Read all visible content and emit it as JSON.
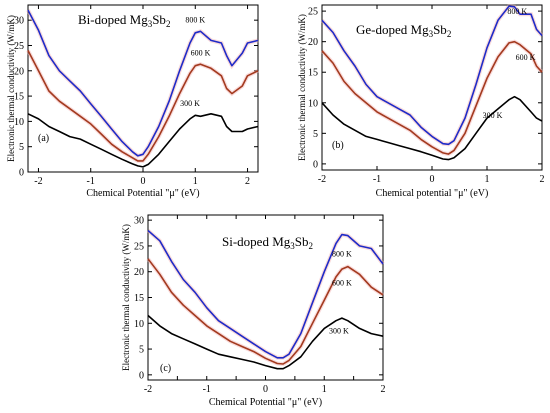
{
  "chart_data": [
    {
      "type": "line",
      "panel_label": "(a)",
      "title": {
        "base": "Bi-doped Mg",
        "sub1": "3",
        "mid": "Sb",
        "sub2": "2"
      },
      "xlabel": "Chemical Potential \"μ\" (eV)",
      "ylabel": "Electronic thermal conductivity (W/mK)",
      "xlim": [
        -2.2,
        2.2
      ],
      "ylim": [
        0,
        33
      ],
      "xticks": [
        -2,
        -1,
        0,
        1,
        2
      ],
      "xtick_labels": [
        "-2",
        "-1",
        "0",
        "1",
        "2"
      ],
      "yticks": [
        0,
        5,
        10,
        15,
        20,
        25,
        30
      ],
      "ytick_labels": [
        "0",
        "5",
        "10",
        "15",
        "20",
        "25",
        "30"
      ],
      "grid": false,
      "series": [
        {
          "name": "800 K",
          "color": "#1f2bc8",
          "x": [
            -2.2,
            -2.0,
            -1.8,
            -1.6,
            -1.4,
            -1.2,
            -1.0,
            -0.8,
            -0.6,
            -0.4,
            -0.2,
            -0.1,
            0.0,
            0.1,
            0.3,
            0.5,
            0.7,
            0.9,
            1.0,
            1.1,
            1.3,
            1.5,
            1.6,
            1.7,
            1.9,
            2.0,
            2.2
          ],
          "y": [
            32,
            28,
            23,
            20,
            18,
            16,
            13.5,
            11,
            8.5,
            6,
            4,
            3.2,
            3.5,
            5,
            9,
            14,
            20,
            25.5,
            27.5,
            27.8,
            26,
            25.5,
            23,
            21,
            23.5,
            25.5,
            26
          ]
        },
        {
          "name": "600 K",
          "color": "#a33a1f",
          "x": [
            -2.2,
            -2.0,
            -1.8,
            -1.6,
            -1.4,
            -1.2,
            -1.0,
            -0.8,
            -0.6,
            -0.4,
            -0.2,
            -0.1,
            0.0,
            0.1,
            0.3,
            0.5,
            0.7,
            0.9,
            1.0,
            1.1,
            1.3,
            1.5,
            1.6,
            1.7,
            1.9,
            2.0,
            2.2
          ],
          "y": [
            24,
            20,
            16,
            14,
            12.5,
            11,
            9.5,
            7.5,
            5.5,
            4,
            2.8,
            2.2,
            2.2,
            3.5,
            7,
            11,
            15.5,
            19.5,
            21,
            21.3,
            20.5,
            19,
            16.5,
            15.5,
            17,
            19,
            20
          ]
        },
        {
          "name": "300 K",
          "color": "#000000",
          "x": [
            -2.2,
            -2.0,
            -1.8,
            -1.6,
            -1.4,
            -1.2,
            -1.0,
            -0.8,
            -0.6,
            -0.4,
            -0.2,
            -0.1,
            0.0,
            0.1,
            0.3,
            0.5,
            0.7,
            0.9,
            1.0,
            1.1,
            1.3,
            1.5,
            1.6,
            1.7,
            1.9,
            2.0,
            2.2
          ],
          "y": [
            11.5,
            10.5,
            9,
            8,
            7,
            6.5,
            5.5,
            4.5,
            3.5,
            2.5,
            1.6,
            1.2,
            1.0,
            1.5,
            3.5,
            6,
            8.5,
            10.5,
            11.2,
            11,
            11.5,
            11,
            9,
            8,
            8,
            8.5,
            9
          ]
        }
      ]
    },
    {
      "type": "line",
      "panel_label": "(b)",
      "title": {
        "base": "Ge-doped Mg",
        "sub1": "3",
        "mid": "Sb",
        "sub2": "2"
      },
      "xlabel": "Chemical potential \"μ\" (eV)",
      "ylabel": "Electronic thermal conductivity (W/mK)",
      "xlim": [
        -2,
        2
      ],
      "ylim": [
        -1,
        26
      ],
      "xticks": [
        -2,
        -1,
        0,
        1,
        2
      ],
      "xtick_labels": [
        "-2",
        "-1",
        "0",
        "1",
        "2"
      ],
      "yticks": [
        0,
        5,
        10,
        15,
        20,
        25
      ],
      "ytick_labels": [
        "0",
        "5",
        "10",
        "15",
        "20",
        "25"
      ],
      "grid": false,
      "series": [
        {
          "name": "800 K",
          "color": "#1f2bc8",
          "x": [
            -2.0,
            -1.8,
            -1.6,
            -1.4,
            -1.2,
            -1.0,
            -0.8,
            -0.6,
            -0.4,
            -0.2,
            0.0,
            0.2,
            0.3,
            0.4,
            0.6,
            0.8,
            1.0,
            1.2,
            1.4,
            1.5,
            1.6,
            1.8,
            1.9,
            2.0
          ],
          "y": [
            23.5,
            21.5,
            18.5,
            16,
            13,
            11,
            10,
            9,
            8,
            6,
            4.5,
            3.3,
            3.2,
            3.8,
            7.5,
            13,
            19,
            23.5,
            25.8,
            25.7,
            24.5,
            24.5,
            22,
            21
          ]
        },
        {
          "name": "600 K",
          "color": "#a33a1f",
          "x": [
            -2.0,
            -1.8,
            -1.6,
            -1.4,
            -1.2,
            -1.0,
            -0.8,
            -0.6,
            -0.4,
            -0.2,
            0.0,
            0.2,
            0.3,
            0.4,
            0.6,
            0.8,
            1.0,
            1.2,
            1.4,
            1.5,
            1.6,
            1.8,
            1.9,
            2.0
          ],
          "y": [
            18.5,
            16.5,
            13.5,
            11.5,
            10,
            8.5,
            7.5,
            6.5,
            5.5,
            4,
            2.8,
            1.8,
            1.6,
            2.2,
            5,
            9.5,
            14,
            17.5,
            19.8,
            20,
            19.5,
            18,
            16,
            15
          ]
        },
        {
          "name": "300 K",
          "color": "#000000",
          "x": [
            -2.0,
            -1.8,
            -1.6,
            -1.4,
            -1.2,
            -1.0,
            -0.8,
            -0.6,
            -0.4,
            -0.2,
            0.0,
            0.2,
            0.3,
            0.4,
            0.6,
            0.8,
            1.0,
            1.2,
            1.4,
            1.5,
            1.6,
            1.8,
            1.9,
            2.0
          ],
          "y": [
            10,
            8,
            6.5,
            5.5,
            4.5,
            4,
            3.5,
            3,
            2.5,
            2,
            1.4,
            0.8,
            0.7,
            1,
            2.5,
            5,
            7.5,
            9,
            10.5,
            11,
            10.5,
            8.5,
            7.5,
            7
          ]
        }
      ]
    },
    {
      "type": "line",
      "panel_label": "(c)",
      "title": {
        "base": "Si-doped Mg",
        "sub1": "3",
        "mid": "Sb",
        "sub2": "2"
      },
      "xlabel": "Chemical Potential \"μ\" (eV)",
      "ylabel": "Electronic thermal conductivity (W/mK)",
      "xlim": [
        -2,
        2
      ],
      "ylim": [
        -1,
        31
      ],
      "xticks": [
        -2,
        -1.5,
        -1,
        -0.5,
        0,
        0.5,
        1,
        1.5,
        2
      ],
      "xtick_labels": [
        "-2",
        "",
        "-1",
        "",
        "0",
        "",
        "1",
        "",
        "2"
      ],
      "yticks": [
        0,
        5,
        10,
        15,
        20,
        25,
        30
      ],
      "ytick_labels": [
        "0",
        "5",
        "10",
        "15",
        "20",
        "25",
        "30"
      ],
      "grid": false,
      "series": [
        {
          "name": "800 K",
          "color": "#1f2bc8",
          "x": [
            -2.0,
            -1.8,
            -1.6,
            -1.4,
            -1.2,
            -1.0,
            -0.8,
            -0.6,
            -0.4,
            -0.2,
            0.0,
            0.2,
            0.3,
            0.4,
            0.6,
            0.8,
            1.0,
            1.2,
            1.3,
            1.4,
            1.6,
            1.8,
            2.0
          ],
          "y": [
            28,
            26,
            22,
            18.5,
            16,
            13,
            10.5,
            9,
            7.5,
            6,
            4.5,
            3.3,
            3.3,
            4,
            8,
            14,
            20,
            25.5,
            27.2,
            27,
            25,
            24.5,
            21.5
          ]
        },
        {
          "name": "600 K",
          "color": "#a33a1f",
          "x": [
            -2.0,
            -1.8,
            -1.6,
            -1.4,
            -1.2,
            -1.0,
            -0.8,
            -0.6,
            -0.4,
            -0.2,
            0.0,
            0.2,
            0.3,
            0.4,
            0.6,
            0.8,
            1.0,
            1.2,
            1.3,
            1.4,
            1.6,
            1.8,
            2.0
          ],
          "y": [
            22.5,
            19.5,
            16,
            13.5,
            11.5,
            9.5,
            8,
            6.5,
            5.5,
            4.5,
            3.2,
            2.2,
            2.1,
            2.8,
            5.5,
            10,
            14.5,
            19,
            20.5,
            21,
            19.5,
            17,
            15.5
          ]
        },
        {
          "name": "300 K",
          "color": "#000000",
          "x": [
            -2.0,
            -1.8,
            -1.6,
            -1.4,
            -1.2,
            -1.0,
            -0.8,
            -0.6,
            -0.4,
            -0.2,
            0.0,
            0.2,
            0.3,
            0.4,
            0.6,
            0.8,
            1.0,
            1.2,
            1.3,
            1.4,
            1.6,
            1.8,
            2.0
          ],
          "y": [
            11.5,
            9.5,
            8,
            7,
            6,
            5,
            4,
            3.5,
            3,
            2.5,
            1.8,
            1.2,
            1.2,
            1.8,
            3.5,
            6.5,
            9,
            10.5,
            11,
            10.5,
            9,
            8,
            7.5
          ]
        }
      ]
    }
  ]
}
